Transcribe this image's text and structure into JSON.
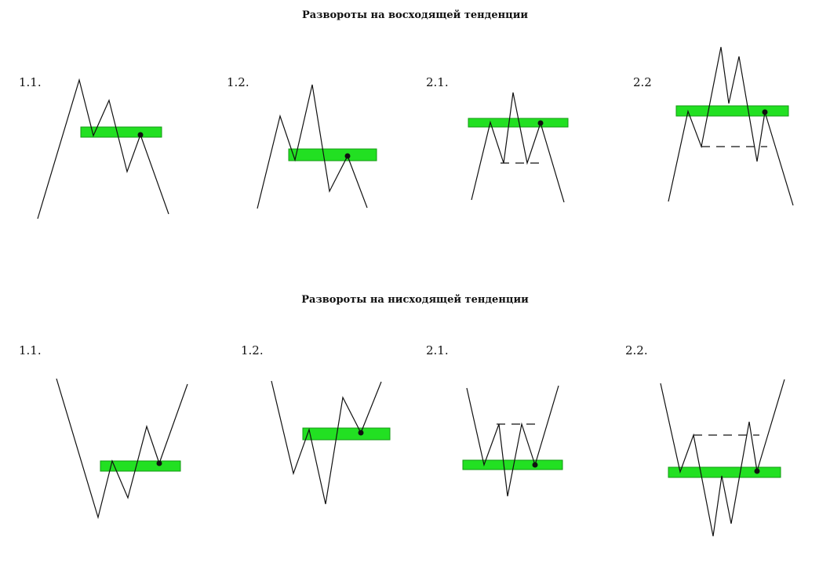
{
  "sections": {
    "up": {
      "title": "Развороты на восходящей тенденции",
      "labels": [
        "1.1.",
        "1.2.",
        "2.1.",
        "2.2"
      ]
    },
    "down": {
      "title": "Развороты на нисходящей тенденции",
      "labels": [
        "1.1.",
        "1.2.",
        "2.1.",
        "2.2."
      ]
    }
  },
  "colors": {
    "zone_fill": "#22e022",
    "zone_border": "#139a13",
    "line": "#111111"
  }
}
